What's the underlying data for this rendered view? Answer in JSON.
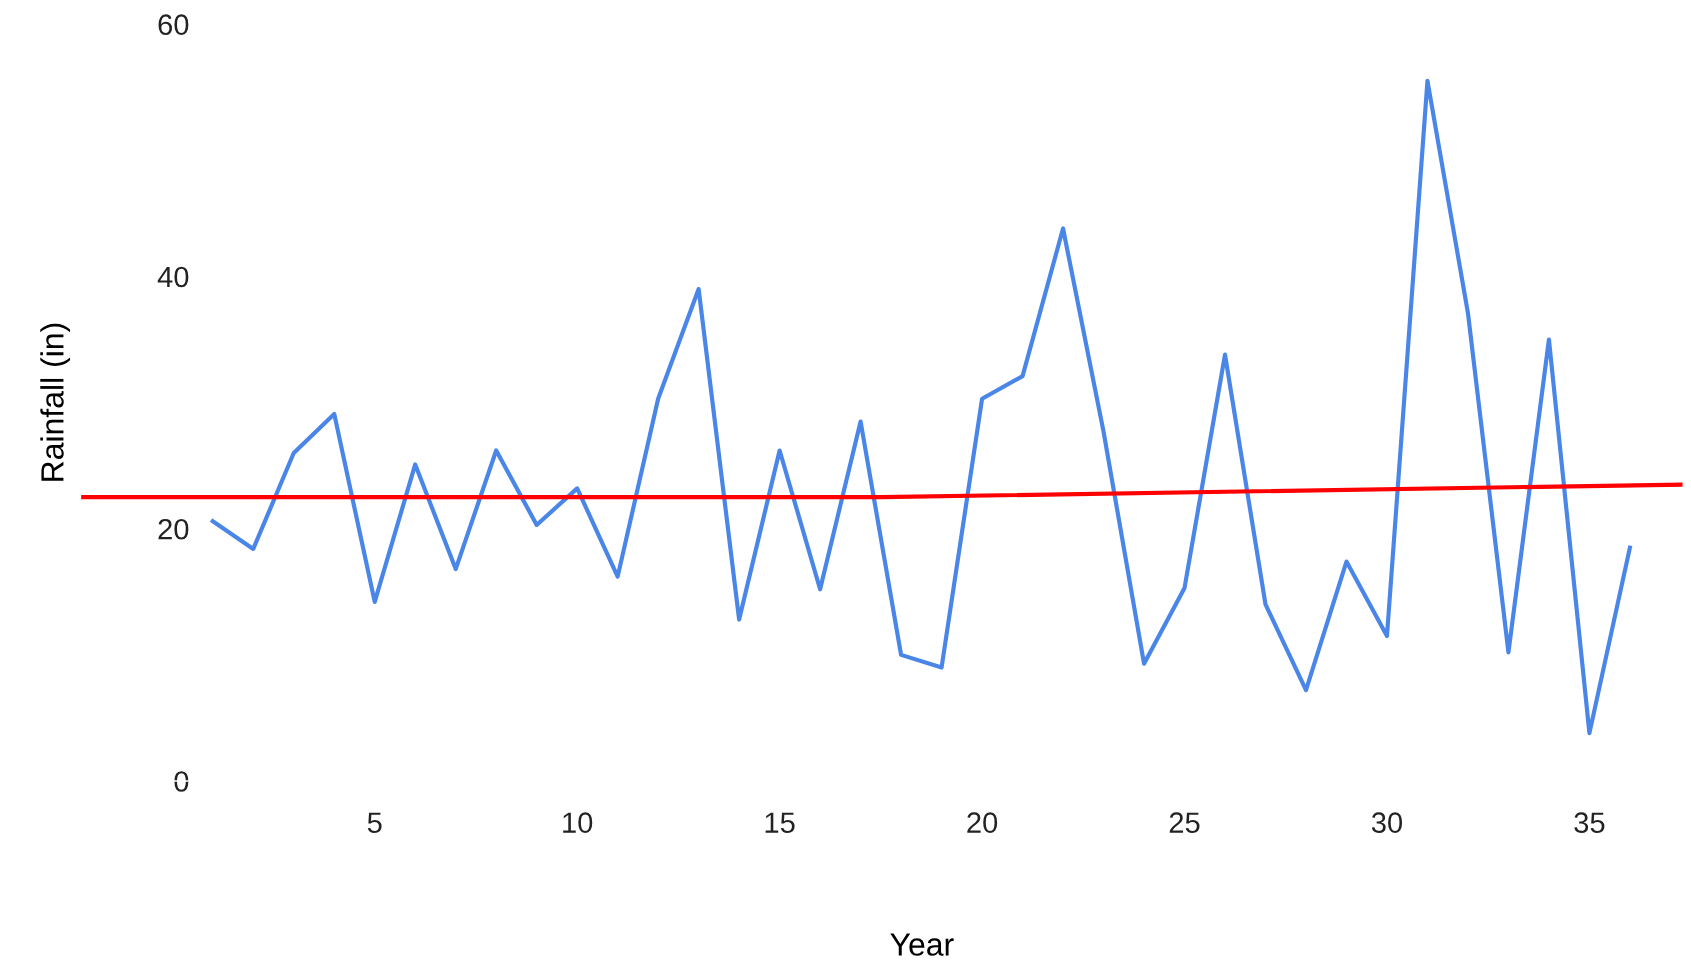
{
  "chart_data": {
    "type": "line",
    "xlabel": "Year",
    "ylabel": "Rainfall (in)",
    "x": [
      1,
      2,
      3,
      4,
      5,
      6,
      7,
      8,
      9,
      10,
      11,
      12,
      13,
      14,
      15,
      16,
      17,
      18,
      19,
      20,
      21,
      22,
      23,
      24,
      25,
      26,
      27,
      28,
      29,
      30,
      31,
      32,
      33,
      34,
      35,
      36
    ],
    "series": [
      {
        "color": "#4a86e8",
        "values": [
          20.6,
          18.4,
          26,
          29.1,
          14.2,
          25.1,
          16.8,
          26.2,
          20.3,
          23.2,
          16.2,
          30.3,
          39,
          12.8,
          26.2,
          15.2,
          28.5,
          10,
          9,
          30.3,
          32.1,
          43.8,
          27.7,
          9.3,
          15.3,
          33.8,
          14,
          7.2,
          17.4,
          11.5,
          55.5,
          37.1,
          10.2,
          35,
          3.8,
          18.5
        ]
      },
      {
        "color": "#ff0000",
        "x": [
          -2.25,
          17.5,
          37.3
        ],
        "values": [
          22.5,
          22.5,
          23.5
        ]
      }
    ],
    "xlim": [
      -2.25,
      37.3
    ],
    "ylim": [
      0,
      60
    ],
    "xticks": [
      5,
      10,
      15,
      20,
      25,
      30,
      35
    ],
    "yticks": [
      0,
      20,
      40,
      60
    ],
    "grid": false,
    "marker": "none",
    "line_style": "solid"
  }
}
